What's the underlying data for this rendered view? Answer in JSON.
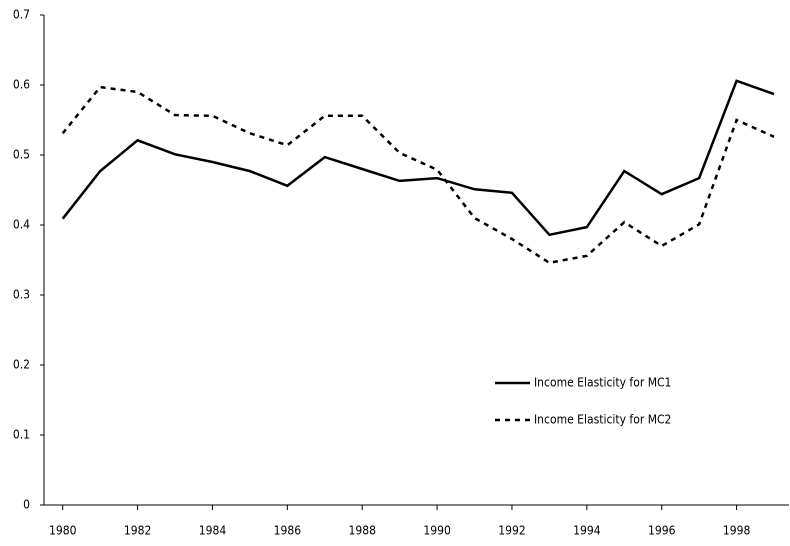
{
  "chart_data": {
    "type": "line",
    "x": [
      1980,
      1981,
      1982,
      1983,
      1984,
      1985,
      1986,
      1987,
      1988,
      1989,
      1990,
      1991,
      1992,
      1993,
      1994,
      1995,
      1996,
      1997,
      1998,
      1999
    ],
    "series": [
      {
        "name": "Income Elasticity for MC1",
        "color": "#000000",
        "dash": false,
        "values": [
          0.409,
          0.477,
          0.521,
          0.501,
          0.49,
          0.477,
          0.456,
          0.497,
          0.48,
          0.463,
          0.467,
          0.451,
          0.446,
          0.386,
          0.397,
          0.477,
          0.444,
          0.467,
          0.606,
          0.587
        ]
      },
      {
        "name": "Income Elasticity for MC2",
        "color": "#000000",
        "dash": true,
        "values": [
          0.531,
          0.597,
          0.59,
          0.557,
          0.556,
          0.531,
          0.514,
          0.556,
          0.556,
          0.503,
          0.479,
          0.41,
          0.38,
          0.346,
          0.356,
          0.404,
          0.37,
          0.401,
          0.55,
          0.526
        ]
      }
    ],
    "xlim": [
      1979.5,
      1999.4
    ],
    "xticks": [
      1980,
      1982,
      1984,
      1986,
      1988,
      1990,
      1992,
      1994,
      1996,
      1998
    ],
    "ylim": [
      0,
      0.7
    ],
    "yticks": [
      0,
      0.1,
      0.2,
      0.3,
      0.4,
      0.5,
      0.6,
      0.7
    ],
    "grid": false
  }
}
